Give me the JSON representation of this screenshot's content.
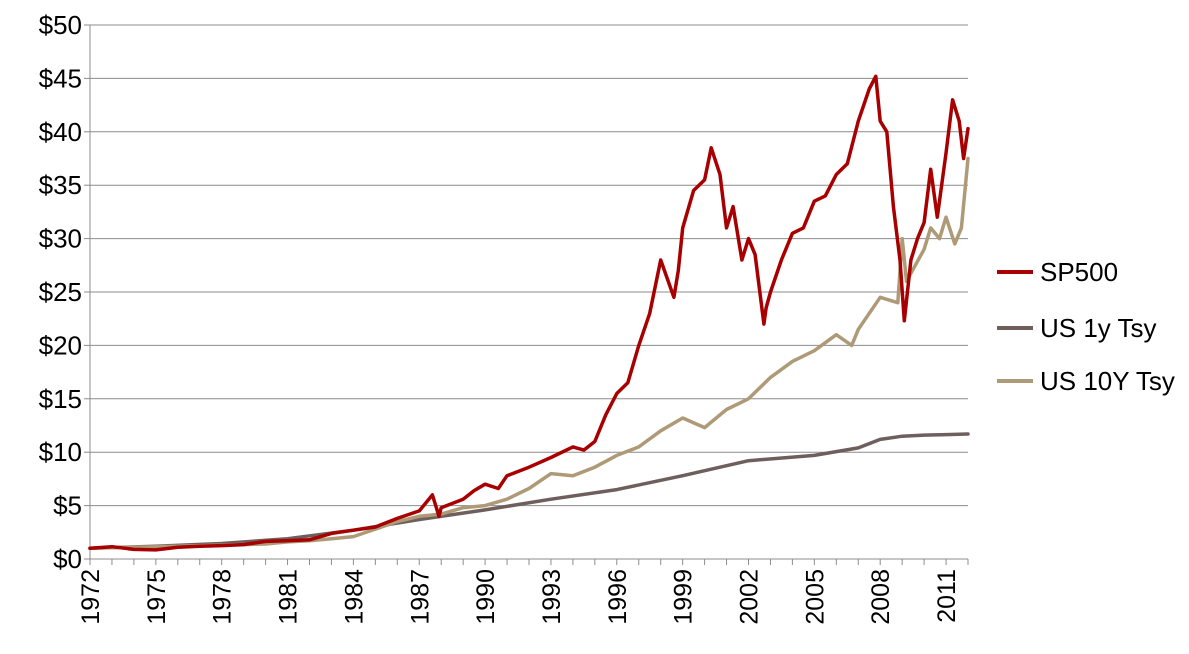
{
  "chart_data": {
    "type": "line",
    "title": "",
    "xlabel": "",
    "ylabel": "",
    "xlim": [
      1972,
      2012
    ],
    "ylim": [
      0,
      50
    ],
    "y_ticks": [
      0,
      5,
      10,
      15,
      20,
      25,
      30,
      35,
      40,
      45,
      50
    ],
    "y_tick_labels": [
      "$0",
      "$5",
      "$10",
      "$15",
      "$20",
      "$25",
      "$30",
      "$35",
      "$40",
      "$45",
      "$50"
    ],
    "x_ticks": [
      1972,
      1975,
      1978,
      1981,
      1984,
      1987,
      1990,
      1993,
      1996,
      1999,
      2002,
      2005,
      2008,
      2011
    ],
    "x_tick_labels": [
      "1972",
      "1975",
      "1978",
      "1981",
      "1984",
      "1987",
      "1990",
      "1993",
      "1996",
      "1999",
      "2002",
      "2005",
      "2008",
      "2011"
    ],
    "grid": "horizontal",
    "legend_position": "right",
    "series": [
      {
        "name": "SP500",
        "color": "#A80000",
        "x": [
          1972,
          1973,
          1974,
          1975,
          1976,
          1977,
          1978,
          1979,
          1980,
          1981,
          1982,
          1983,
          1984,
          1985,
          1986,
          1987.0,
          1987.6,
          1987.9,
          1988,
          1989,
          1989.5,
          1990,
          1990.6,
          1991,
          1992,
          1993,
          1994,
          1994.5,
          1995,
          1995.5,
          1996,
          1996.5,
          1997,
          1997.5,
          1998,
          1998.6,
          1998.8,
          1999,
          1999.5,
          2000,
          2000.3,
          2000.7,
          2001,
          2001.3,
          2001.7,
          2002,
          2002.3,
          2002.7,
          2002.8,
          2003,
          2003.5,
          2004,
          2004.5,
          2005,
          2005.5,
          2006,
          2006.5,
          2007,
          2007.5,
          2007.8,
          2008,
          2008.3,
          2008.6,
          2008.9,
          2009.1,
          2009.4,
          2009.7,
          2010,
          2010.3,
          2010.6,
          2011,
          2011.3,
          2011.6,
          2011.8,
          2012
        ],
        "values": [
          1.0,
          1.15,
          0.9,
          0.85,
          1.1,
          1.2,
          1.25,
          1.35,
          1.65,
          1.7,
          1.8,
          2.4,
          2.7,
          3.0,
          3.8,
          4.5,
          6.0,
          4.0,
          4.8,
          5.6,
          6.4,
          7.0,
          6.6,
          7.8,
          8.6,
          9.5,
          10.5,
          10.2,
          11.0,
          13.5,
          15.5,
          16.5,
          20.0,
          23.0,
          28.0,
          24.5,
          27.0,
          31.0,
          34.5,
          35.5,
          38.5,
          36.0,
          31.0,
          33.0,
          28.0,
          30.0,
          28.5,
          22.0,
          23.5,
          25.0,
          28.0,
          30.5,
          31.0,
          33.5,
          34.0,
          36.0,
          37.0,
          41.0,
          44.0,
          45.2,
          41.0,
          40.0,
          33.0,
          28.0,
          22.3,
          28.0,
          30.0,
          31.5,
          36.5,
          32.0,
          38.0,
          43.0,
          41.0,
          37.5,
          40.3
        ]
      },
      {
        "name": "US 1y Tsy",
        "color": "#6E5F5C",
        "x": [
          1972,
          1975,
          1978,
          1981,
          1984,
          1987,
          1990,
          1993,
          1996,
          1999,
          2002,
          2005,
          2007,
          2008,
          2009,
          2010,
          2011,
          2012
        ],
        "values": [
          1.0,
          1.2,
          1.45,
          1.9,
          2.7,
          3.7,
          4.6,
          5.6,
          6.5,
          7.8,
          9.2,
          9.7,
          10.4,
          11.2,
          11.5,
          11.6,
          11.65,
          11.7
        ]
      },
      {
        "name": "US 10Y Tsy",
        "color": "#AE9A76",
        "x": [
          1972,
          1975,
          1978,
          1980,
          1981,
          1982,
          1983,
          1984,
          1985,
          1986,
          1987,
          1988,
          1989,
          1990,
          1991,
          1992,
          1993,
          1994,
          1995,
          1996,
          1997,
          1998,
          1999,
          2000,
          2001,
          2002,
          2003,
          2004,
          2005,
          2006,
          2006.7,
          2007,
          2008,
          2008.8,
          2009.0,
          2009.2,
          2009.6,
          2010,
          2010.3,
          2010.7,
          2011,
          2011.4,
          2011.7,
          2012
        ],
        "values": [
          1.0,
          1.15,
          1.3,
          1.4,
          1.6,
          1.7,
          1.9,
          2.1,
          2.8,
          3.5,
          4.0,
          4.2,
          4.8,
          5.0,
          5.6,
          6.6,
          8.0,
          7.8,
          8.6,
          9.7,
          10.5,
          12.0,
          13.2,
          12.3,
          14.0,
          15.0,
          17.0,
          18.5,
          19.5,
          21.0,
          20.0,
          21.5,
          24.5,
          24.0,
          30.0,
          26.0,
          27.5,
          29.0,
          31.0,
          30.0,
          32.0,
          29.5,
          31.0,
          37.5
        ]
      }
    ]
  }
}
